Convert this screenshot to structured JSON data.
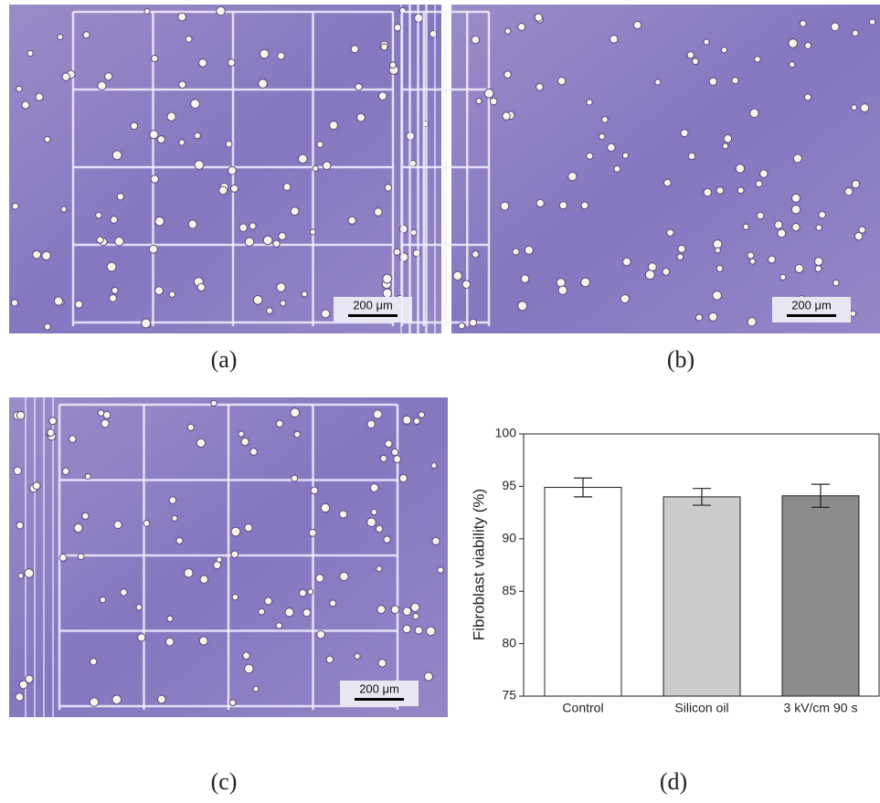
{
  "panels": [
    {
      "label": "(a)",
      "scale_bar": "200 μm"
    },
    {
      "label": "(b)",
      "scale_bar": "200 μm"
    },
    {
      "label": "(c)",
      "scale_bar": "200 μm"
    }
  ],
  "chart_label": "(d)",
  "chart_data": {
    "type": "bar",
    "categories": [
      "Control",
      "Silicon oil",
      "3 kV/cm 90 s"
    ],
    "values": [
      94.9,
      94.0,
      94.1
    ],
    "errors": [
      0.9,
      0.8,
      1.1
    ],
    "colors": [
      "#ffffff",
      "#cccccc",
      "#8c8c8c"
    ],
    "y_label": "Fibroblast viability (%)",
    "ylim": [
      75,
      100
    ],
    "yticks": [
      75,
      80,
      85,
      90,
      95,
      100
    ]
  }
}
